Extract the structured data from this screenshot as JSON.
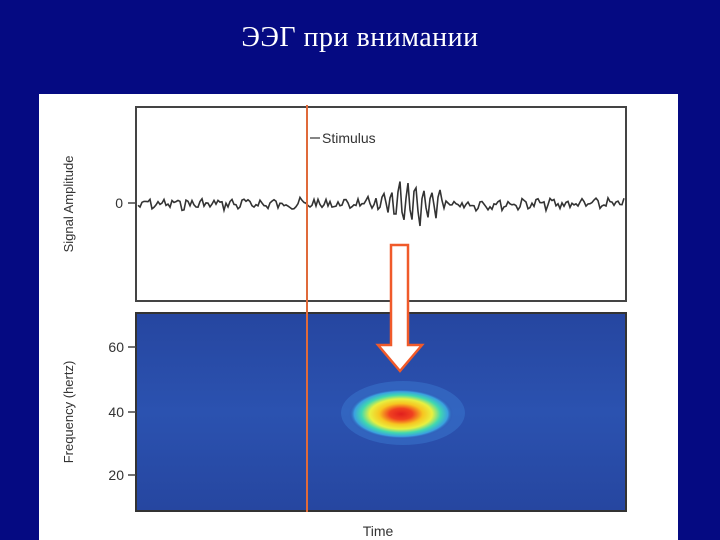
{
  "slide": {
    "title": "ЭЭГ при внимании"
  },
  "figure": {
    "top_panel": {
      "ylabel": "Signal Amplitude",
      "zero_tick": "0",
      "stimulus_label": "Stimulus"
    },
    "bottom_panel": {
      "ylabel": "Frequency (hertz)",
      "yticks": [
        "60",
        "40",
        "20"
      ],
      "xlabel": "Time",
      "peak_frequency_hz": 40
    },
    "colors": {
      "background": "#050a82",
      "stimulus_line": "#e06a3a",
      "arrow_outline": "#f05a2a",
      "spectrogram_bg": "#2a4aa8",
      "hot_spot_center": "#e01e1e"
    }
  }
}
